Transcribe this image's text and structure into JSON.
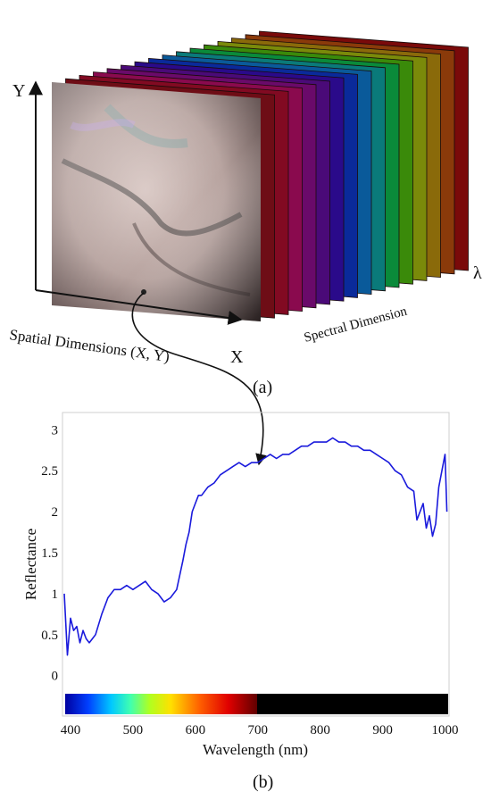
{
  "panel_a": {
    "caption": "(a)",
    "y_axis_label": "Y",
    "x_axis_label": "X",
    "lambda_label": "λ",
    "spatial_label": "Spatial Dimensions (X, Y)",
    "spectral_label": "Spectral Dimension",
    "band_colors": [
      "#6e0d16",
      "#820a22",
      "#8a0a4e",
      "#6a0a6a",
      "#4a0a78",
      "#2a0a8a",
      "#0a2a9a",
      "#0a5a9a",
      "#0a7a7a",
      "#0a8a3a",
      "#3a8a0a",
      "#7a8a0a",
      "#8a6a0a",
      "#8a3a0a",
      "#7a0a0a"
    ]
  },
  "panel_b": {
    "caption": "(b)",
    "line_color": "#1a1adc",
    "chart_data": {
      "type": "line",
      "title": "",
      "xlabel": "Wavelength (nm)",
      "ylabel": "Reflectance",
      "xlim": [
        390,
        1005
      ],
      "ylim": [
        -0.2,
        3.2
      ],
      "xticks": [
        "400",
        "500",
        "600",
        "700",
        "800",
        "900",
        "1000"
      ],
      "yticks": [
        "0",
        "0.5",
        "1",
        "1.5",
        "2",
        "2.5",
        "3"
      ],
      "series": [
        {
          "x": [
            390,
            395,
            400,
            405,
            410,
            415,
            420,
            425,
            430,
            435,
            440,
            450,
            460,
            470,
            480,
            490,
            500,
            510,
            520,
            530,
            540,
            550,
            560,
            570,
            580,
            585,
            590,
            595,
            600,
            605,
            610,
            615,
            620,
            630,
            640,
            650,
            660,
            670,
            680,
            690,
            700,
            710,
            720,
            730,
            740,
            750,
            760,
            770,
            780,
            790,
            800,
            810,
            820,
            830,
            840,
            850,
            860,
            870,
            880,
            890,
            900,
            910,
            920,
            930,
            940,
            950,
            955,
            960,
            965,
            970,
            975,
            980,
            985,
            990,
            995,
            1000,
            1003
          ],
          "y": [
            1.0,
            0.25,
            0.7,
            0.55,
            0.6,
            0.4,
            0.55,
            0.45,
            0.4,
            0.45,
            0.5,
            0.75,
            0.95,
            1.05,
            1.05,
            1.1,
            1.05,
            1.1,
            1.15,
            1.05,
            1.0,
            0.9,
            0.95,
            1.05,
            1.4,
            1.6,
            1.75,
            2.0,
            2.1,
            2.2,
            2.2,
            2.25,
            2.3,
            2.35,
            2.45,
            2.5,
            2.55,
            2.6,
            2.55,
            2.6,
            2.6,
            2.65,
            2.7,
            2.65,
            2.7,
            2.7,
            2.75,
            2.8,
            2.8,
            2.85,
            2.85,
            2.85,
            2.9,
            2.85,
            2.85,
            2.8,
            2.8,
            2.75,
            2.75,
            2.7,
            2.65,
            2.6,
            2.5,
            2.45,
            2.3,
            2.25,
            1.9,
            2.0,
            2.1,
            1.8,
            1.95,
            1.7,
            1.85,
            2.3,
            2.5,
            2.7,
            2.0
          ]
        }
      ],
      "grid": false,
      "legend": "none"
    }
  }
}
